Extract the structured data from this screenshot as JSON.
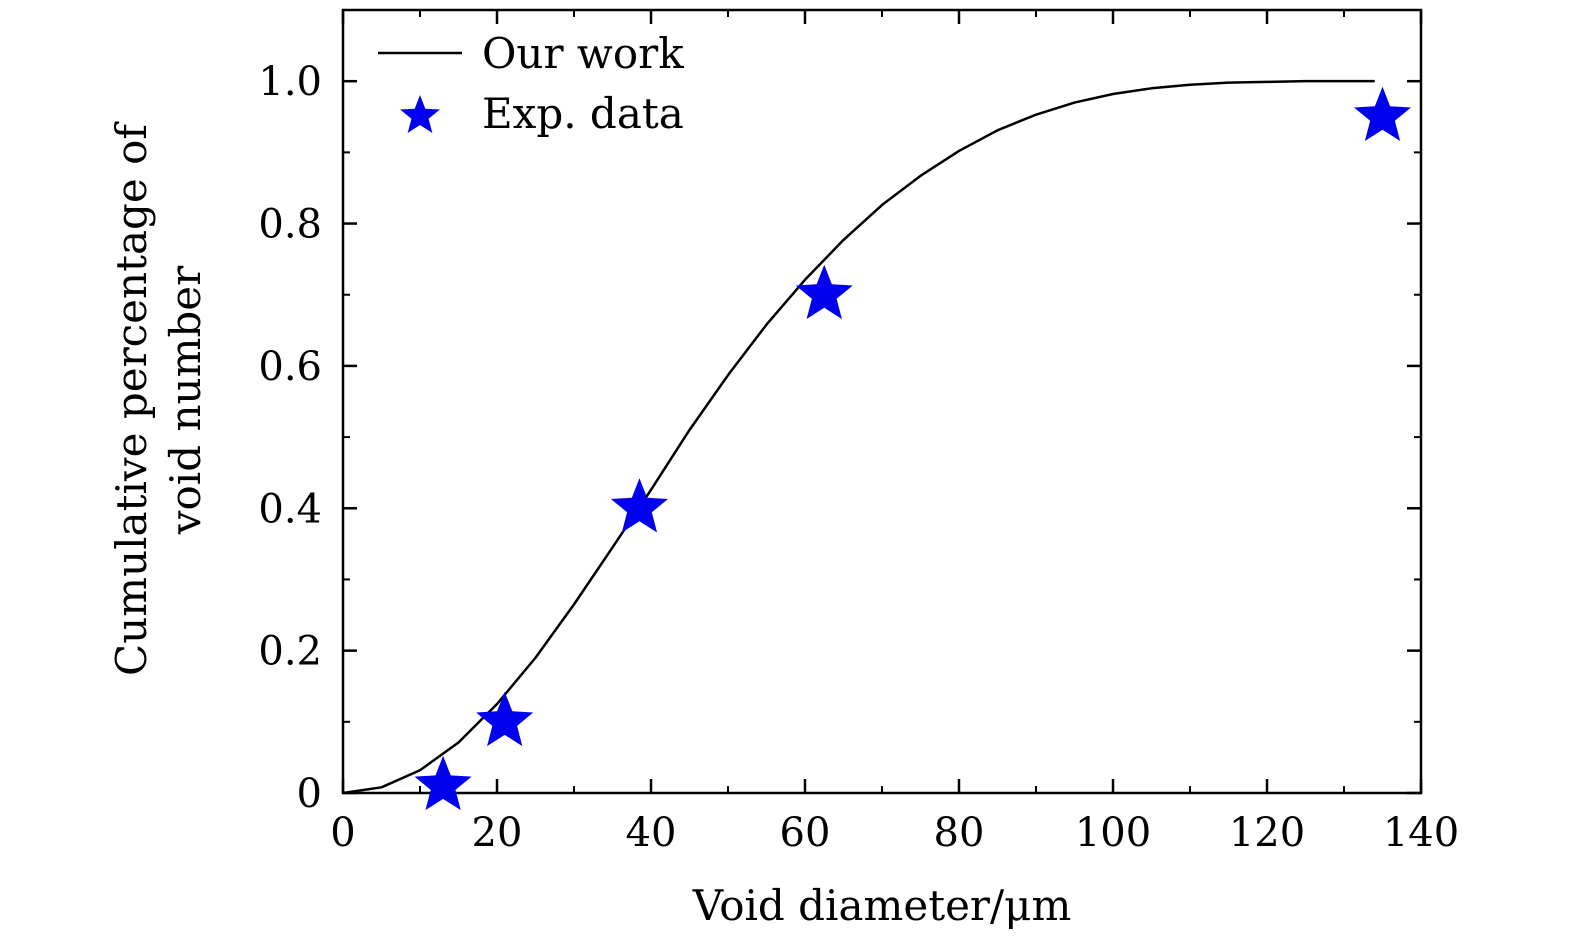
{
  "chart_data": {
    "type": "scatter",
    "xlabel": "Void diameter/μm",
    "ylabel_lines": [
      "Cumulative percentage of",
      "void number"
    ],
    "xlim": [
      0,
      140
    ],
    "ylim": [
      0,
      1.1
    ],
    "x_ticks": [
      0,
      20,
      40,
      60,
      80,
      100,
      120,
      140
    ],
    "x_tick_labels": [
      "0",
      "20",
      "40",
      "60",
      "80",
      "100",
      "120",
      "140"
    ],
    "y_ticks": [
      0,
      0.2,
      0.4,
      0.6,
      0.8,
      1.0
    ],
    "y_tick_labels": [
      "0",
      "0.2",
      "0.4",
      "0.6",
      "0.8",
      "1.0"
    ],
    "grid": false,
    "legend_position": "top-left",
    "series": [
      {
        "name": "Our work",
        "kind": "line",
        "color": "#000000",
        "x": [
          0,
          5,
          10,
          15,
          20,
          25,
          30,
          35,
          40,
          45,
          50,
          55,
          60,
          65,
          70,
          75,
          80,
          85,
          90,
          95,
          100,
          105,
          110,
          115,
          120,
          125,
          130,
          134
        ],
        "y": [
          0,
          0.008,
          0.032,
          0.071,
          0.125,
          0.19,
          0.265,
          0.345,
          0.426,
          0.51,
          0.587,
          0.658,
          0.721,
          0.777,
          0.826,
          0.867,
          0.902,
          0.931,
          0.953,
          0.97,
          0.982,
          0.99,
          0.995,
          0.998,
          0.999,
          1.0,
          1.0,
          1.0
        ]
      },
      {
        "name": "Exp. data",
        "kind": "scatter",
        "marker": "star",
        "color": "#0000ee",
        "x": [
          13,
          21,
          38.5,
          62.5,
          135
        ],
        "y": [
          0.01,
          0.1,
          0.4,
          0.7,
          0.95
        ]
      }
    ]
  }
}
